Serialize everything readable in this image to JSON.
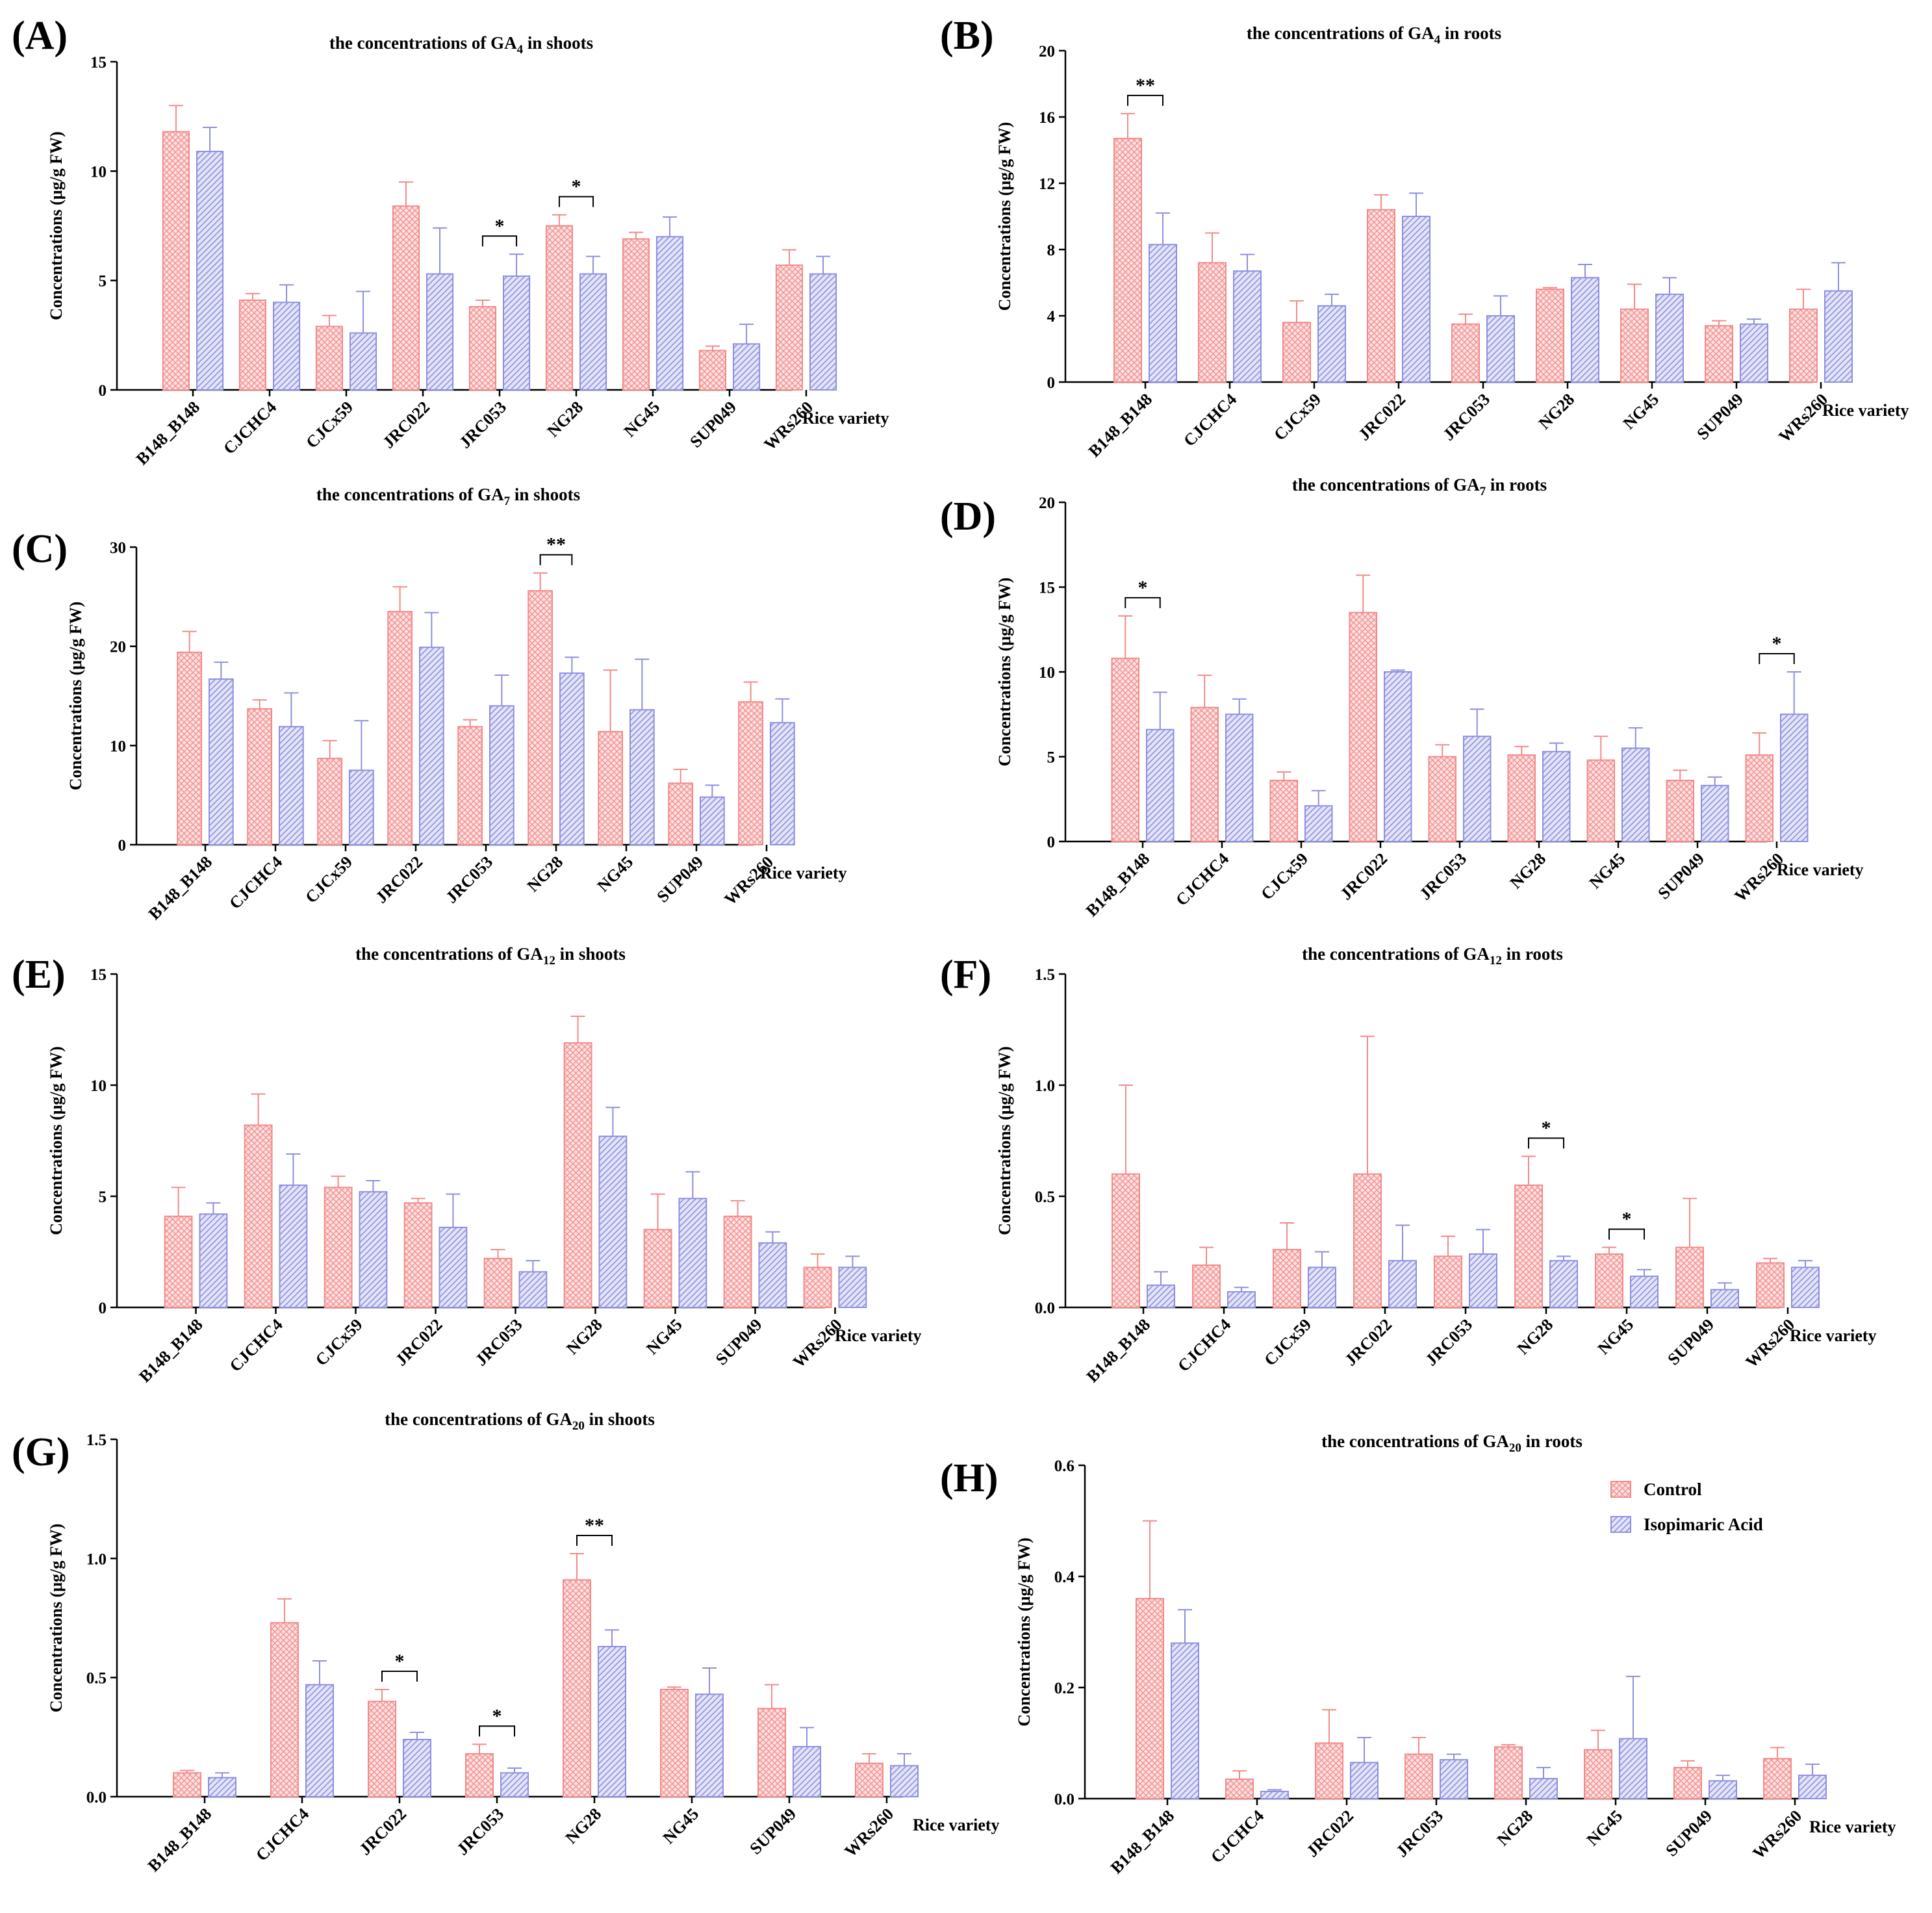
{
  "colors": {
    "control": "#f28a8a",
    "control_fill": "#fde0e0",
    "isopimaric": "#8d8fe0",
    "isopimaric_fill": "#e3e3f8",
    "axis": "#000000"
  },
  "legend": [
    {
      "key": "control",
      "label": "Control"
    },
    {
      "key": "isopimaric",
      "label": "Isopimaric Acid"
    }
  ],
  "chart_data": [
    {
      "panel": "(A)",
      "type": "bar",
      "title": {
        "pre": "the concentrations of GA",
        "sub": "4",
        "post": " in shoots"
      },
      "ylabel": "Concentrations (μg/g FW)",
      "xlabel": "Rice variety",
      "ylim": [
        0,
        15
      ],
      "yticks": [
        0,
        5,
        10,
        15
      ],
      "categories": [
        "B148_B148",
        "CJCHC4",
        "CJCx59",
        "JRC022",
        "JRC053",
        "NG28",
        "NG45",
        "SUP049",
        "WRs260"
      ],
      "series": [
        {
          "name": "Control",
          "values": [
            11.8,
            4.1,
            2.9,
            8.4,
            3.8,
            7.5,
            6.9,
            1.8,
            5.7
          ],
          "errors": [
            1.2,
            0.3,
            0.5,
            1.1,
            0.3,
            0.5,
            0.3,
            0.2,
            0.7
          ]
        },
        {
          "name": "Isopimaric Acid",
          "values": [
            10.9,
            4.0,
            2.6,
            5.3,
            5.2,
            5.3,
            7.0,
            2.1,
            5.3
          ],
          "errors": [
            1.1,
            0.8,
            1.9,
            2.1,
            1.0,
            0.8,
            0.9,
            0.9,
            0.8
          ]
        }
      ],
      "significance": [
        {
          "category": "JRC053",
          "label": "*"
        },
        {
          "category": "NG28",
          "label": "*"
        }
      ]
    },
    {
      "panel": "(B)",
      "type": "bar",
      "title": {
        "pre": "the concentrations of GA",
        "sub": "4",
        "post": " in roots"
      },
      "ylabel": "Concentrations (μg/g FW)",
      "xlabel": "Rice variety",
      "ylim": [
        0,
        20
      ],
      "yticks": [
        0,
        4,
        8,
        12,
        16,
        20
      ],
      "categories": [
        "B148_B148",
        "CJCHC4",
        "CJCx59",
        "JRC022",
        "JRC053",
        "NG28",
        "NG45",
        "SUP049",
        "WRs260"
      ],
      "series": [
        {
          "name": "Control",
          "values": [
            14.7,
            7.2,
            3.6,
            10.4,
            3.5,
            5.6,
            4.4,
            3.4,
            4.4
          ],
          "errors": [
            1.5,
            1.8,
            1.3,
            0.9,
            0.6,
            0.1,
            1.5,
            0.3,
            1.2
          ]
        },
        {
          "name": "Isopimaric Acid",
          "values": [
            8.3,
            6.7,
            4.6,
            10.0,
            4.0,
            6.3,
            5.3,
            3.5,
            5.5
          ],
          "errors": [
            1.9,
            1.0,
            0.7,
            1.4,
            1.2,
            0.8,
            1.0,
            0.3,
            1.7
          ]
        }
      ],
      "significance": [
        {
          "category": "B148_B148",
          "label": "**"
        }
      ]
    },
    {
      "panel": "(C)",
      "type": "bar",
      "title": {
        "pre": "the concentrations of  GA",
        "sub": "7",
        "post": " in shoots"
      },
      "ylabel": "Concentrations (μg/g FW)",
      "xlabel": "Rice variety",
      "ylim": [
        0,
        30
      ],
      "yticks": [
        0,
        10,
        20,
        30
      ],
      "categories": [
        "B148_B148",
        "CJCHC4",
        "CJCx59",
        "JRC022",
        "JRC053",
        "NG28",
        "NG45",
        "SUP049",
        "WRs260"
      ],
      "series": [
        {
          "name": "Control",
          "values": [
            19.4,
            13.7,
            8.7,
            23.5,
            11.9,
            25.6,
            11.4,
            6.2,
            14.4
          ],
          "errors": [
            2.1,
            0.9,
            1.8,
            2.5,
            0.7,
            1.8,
            6.2,
            1.4,
            2.0
          ]
        },
        {
          "name": "Isopimaric Acid",
          "values": [
            16.7,
            11.9,
            7.5,
            19.9,
            14.0,
            17.3,
            13.6,
            4.8,
            12.3
          ],
          "errors": [
            1.7,
            3.4,
            5.0,
            3.5,
            3.1,
            1.6,
            5.1,
            1.2,
            2.4
          ]
        }
      ],
      "significance": [
        {
          "category": "NG28",
          "label": "**"
        }
      ]
    },
    {
      "panel": "(D)",
      "type": "bar",
      "title": {
        "pre": "the concentrations of GA",
        "sub": "7",
        "post": " in roots"
      },
      "ylabel": "Concentrations (μg/g FW)",
      "xlabel": "Rice variety",
      "ylim": [
        0,
        20
      ],
      "yticks": [
        0,
        5,
        10,
        15,
        20
      ],
      "categories": [
        "B148_B148",
        "CJCHC4",
        "CJCx59",
        "JRC022",
        "JRC053",
        "NG28",
        "NG45",
        "SUP049",
        "WRs260"
      ],
      "series": [
        {
          "name": "Control",
          "values": [
            10.8,
            7.9,
            3.6,
            13.5,
            5.0,
            5.1,
            4.8,
            3.6,
            5.1
          ],
          "errors": [
            2.5,
            1.9,
            0.5,
            2.2,
            0.7,
            0.5,
            1.4,
            0.6,
            1.3
          ]
        },
        {
          "name": "Isopimaric Acid",
          "values": [
            6.6,
            7.5,
            2.1,
            10.0,
            6.2,
            5.3,
            5.5,
            3.3,
            7.5
          ],
          "errors": [
            2.2,
            0.9,
            0.9,
            0.1,
            1.6,
            0.5,
            1.2,
            0.5,
            2.5
          ]
        }
      ],
      "significance": [
        {
          "category": "B148_B148",
          "label": "*"
        },
        {
          "category": "WRs260",
          "label": "*"
        }
      ]
    },
    {
      "panel": "(E)",
      "type": "bar",
      "title": {
        "pre": "the concentrations of GA",
        "sub": "12",
        "post": " in shoots"
      },
      "ylabel": "Concentrations (μg/g FW)",
      "xlabel": "Rice variety",
      "ylim": [
        0,
        15
      ],
      "yticks": [
        0,
        5,
        10,
        15
      ],
      "categories": [
        "B148_B148",
        "CJCHC4",
        "CJCx59",
        "JRC022",
        "JRC053",
        "NG28",
        "NG45",
        "SUP049",
        "WRs260"
      ],
      "series": [
        {
          "name": "Control",
          "values": [
            4.1,
            8.2,
            5.4,
            4.7,
            2.2,
            11.9,
            3.5,
            4.1,
            1.8
          ],
          "errors": [
            1.3,
            1.4,
            0.5,
            0.2,
            0.4,
            1.2,
            1.6,
            0.7,
            0.6
          ]
        },
        {
          "name": "Isopimaric Acid",
          "values": [
            4.2,
            5.5,
            5.2,
            3.6,
            1.6,
            7.7,
            4.9,
            2.9,
            1.8
          ],
          "errors": [
            0.5,
            1.4,
            0.5,
            1.5,
            0.5,
            1.3,
            1.2,
            0.5,
            0.5
          ]
        }
      ],
      "significance": []
    },
    {
      "panel": "(F)",
      "type": "bar",
      "title": {
        "pre": "the concentrations of GA",
        "sub": "12",
        "post": " in roots"
      },
      "ylabel": "Concentrations (μg/g FW)",
      "xlabel": "Rice variety",
      "ylim": [
        0,
        1.5
      ],
      "yticks": [
        0.0,
        0.5,
        1.0,
        1.5
      ],
      "categories": [
        "B148_B148",
        "CJCHC4",
        "CJCx59",
        "JRC022",
        "JRC053",
        "NG28",
        "NG45",
        "SUP049",
        "WRs260"
      ],
      "series": [
        {
          "name": "Control",
          "values": [
            0.6,
            0.19,
            0.26,
            0.6,
            0.23,
            0.55,
            0.24,
            0.27,
            0.2
          ],
          "errors": [
            0.4,
            0.08,
            0.12,
            0.62,
            0.09,
            0.13,
            0.03,
            0.22,
            0.02
          ]
        },
        {
          "name": "Isopimaric Acid",
          "values": [
            0.1,
            0.07,
            0.18,
            0.21,
            0.24,
            0.21,
            0.14,
            0.08,
            0.18
          ],
          "errors": [
            0.06,
            0.02,
            0.07,
            0.16,
            0.11,
            0.02,
            0.03,
            0.03,
            0.03
          ]
        }
      ],
      "significance": [
        {
          "category": "NG28",
          "label": "*"
        },
        {
          "category": "NG45",
          "label": "*"
        }
      ]
    },
    {
      "panel": "(G)",
      "type": "bar",
      "title": {
        "pre": "the concentrations of GA",
        "sub": "20",
        "post": " in shoots"
      },
      "ylabel": "Concentrations (μg/g FW)",
      "xlabel": "Rice variety",
      "ylim": [
        0,
        1.5
      ],
      "yticks": [
        0.0,
        0.5,
        1.0,
        1.5
      ],
      "categories": [
        "B148_B148",
        "CJCHC4",
        "JRC022",
        "JRC053",
        "NG28",
        "NG45",
        "SUP049",
        "WRs260"
      ],
      "series": [
        {
          "name": "Control",
          "values": [
            0.1,
            0.73,
            0.4,
            0.18,
            0.91,
            0.45,
            0.37,
            0.14
          ],
          "errors": [
            0.01,
            0.1,
            0.05,
            0.04,
            0.11,
            0.01,
            0.1,
            0.04
          ]
        },
        {
          "name": "Isopimaric Acid",
          "values": [
            0.08,
            0.47,
            0.24,
            0.1,
            0.63,
            0.43,
            0.21,
            0.13
          ],
          "errors": [
            0.02,
            0.1,
            0.03,
            0.02,
            0.07,
            0.11,
            0.08,
            0.05
          ]
        }
      ],
      "significance": [
        {
          "category": "JRC022",
          "label": "*"
        },
        {
          "category": "JRC053",
          "label": "*"
        },
        {
          "category": "NG28",
          "label": "**"
        }
      ]
    },
    {
      "panel": "(H)",
      "type": "bar",
      "title": {
        "pre": "the concentrations of GA",
        "sub": "20",
        "post": " in roots"
      },
      "ylabel": "Concentrations (μg/g FW)",
      "xlabel": "Rice variety",
      "ylim": [
        0,
        0.6
      ],
      "yticks": [
        0.0,
        0.2,
        0.4,
        0.6
      ],
      "categories": [
        "B148_B148",
        "CJCHC4",
        "JRC022",
        "JRC053",
        "NG28",
        "NG45",
        "SUP049",
        "WRs260"
      ],
      "series": [
        {
          "name": "Control",
          "values": [
            0.36,
            0.035,
            0.1,
            0.08,
            0.093,
            0.088,
            0.056,
            0.072
          ],
          "errors": [
            0.14,
            0.015,
            0.06,
            0.03,
            0.004,
            0.035,
            0.012,
            0.02
          ]
        },
        {
          "name": "Isopimaric Acid",
          "values": [
            0.28,
            0.013,
            0.065,
            0.07,
            0.036,
            0.108,
            0.032,
            0.042
          ],
          "errors": [
            0.06,
            0.003,
            0.045,
            0.01,
            0.02,
            0.112,
            0.01,
            0.02
          ]
        }
      ],
      "significance": []
    }
  ]
}
